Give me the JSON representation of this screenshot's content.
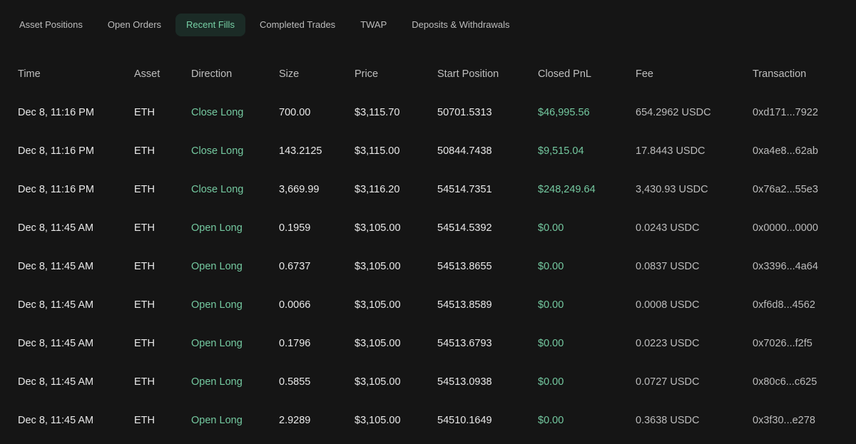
{
  "tabs": [
    {
      "label": "Asset Positions",
      "active": false
    },
    {
      "label": "Open Orders",
      "active": false
    },
    {
      "label": "Recent Fills",
      "active": true
    },
    {
      "label": "Completed Trades",
      "active": false
    },
    {
      "label": "TWAP",
      "active": false
    },
    {
      "label": "Deposits & Withdrawals",
      "active": false
    }
  ],
  "table": {
    "headers": {
      "time": "Time",
      "asset": "Asset",
      "direction": "Direction",
      "size": "Size",
      "price": "Price",
      "start_position": "Start Position",
      "closed_pnl": "Closed PnL",
      "fee": "Fee",
      "transaction": "Transaction"
    },
    "rows": [
      {
        "time": "Dec 8, 11:16 PM",
        "asset": "ETH",
        "direction": "Close Long",
        "size": "700.00",
        "price": "$3,115.70",
        "start_position": "50701.5313",
        "closed_pnl": "$46,995.56",
        "fee": "654.2962 USDC",
        "transaction": "0xd171...7922"
      },
      {
        "time": "Dec 8, 11:16 PM",
        "asset": "ETH",
        "direction": "Close Long",
        "size": "143.2125",
        "price": "$3,115.00",
        "start_position": "50844.7438",
        "closed_pnl": "$9,515.04",
        "fee": "17.8443 USDC",
        "transaction": "0xa4e8...62ab"
      },
      {
        "time": "Dec 8, 11:16 PM",
        "asset": "ETH",
        "direction": "Close Long",
        "size": "3,669.99",
        "price": "$3,116.20",
        "start_position": "54514.7351",
        "closed_pnl": "$248,249.64",
        "fee": "3,430.93 USDC",
        "transaction": "0x76a2...55e3"
      },
      {
        "time": "Dec 8, 11:45 AM",
        "asset": "ETH",
        "direction": "Open Long",
        "size": "0.1959",
        "price": "$3,105.00",
        "start_position": "54514.5392",
        "closed_pnl": "$0.00",
        "fee": "0.0243 USDC",
        "transaction": "0x0000...0000"
      },
      {
        "time": "Dec 8, 11:45 AM",
        "asset": "ETH",
        "direction": "Open Long",
        "size": "0.6737",
        "price": "$3,105.00",
        "start_position": "54513.8655",
        "closed_pnl": "$0.00",
        "fee": "0.0837 USDC",
        "transaction": "0x3396...4a64"
      },
      {
        "time": "Dec 8, 11:45 AM",
        "asset": "ETH",
        "direction": "Open Long",
        "size": "0.0066",
        "price": "$3,105.00",
        "start_position": "54513.8589",
        "closed_pnl": "$0.00",
        "fee": "0.0008 USDC",
        "transaction": "0xf6d8...4562"
      },
      {
        "time": "Dec 8, 11:45 AM",
        "asset": "ETH",
        "direction": "Open Long",
        "size": "0.1796",
        "price": "$3,105.00",
        "start_position": "54513.6793",
        "closed_pnl": "$0.00",
        "fee": "0.0223 USDC",
        "transaction": "0x7026...f2f5"
      },
      {
        "time": "Dec 8, 11:45 AM",
        "asset": "ETH",
        "direction": "Open Long",
        "size": "0.5855",
        "price": "$3,105.00",
        "start_position": "54513.0938",
        "closed_pnl": "$0.00",
        "fee": "0.0727 USDC",
        "transaction": "0x80c6...c625"
      },
      {
        "time": "Dec 8, 11:45 AM",
        "asset": "ETH",
        "direction": "Open Long",
        "size": "2.9289",
        "price": "$3,105.00",
        "start_position": "54510.1649",
        "closed_pnl": "$0.00",
        "fee": "0.3638 USDC",
        "transaction": "0x3f30...e278"
      }
    ]
  },
  "colors": {
    "background": "#151515",
    "accent_green": "#74c9a0",
    "active_tab_bg": "#1b2b26"
  }
}
